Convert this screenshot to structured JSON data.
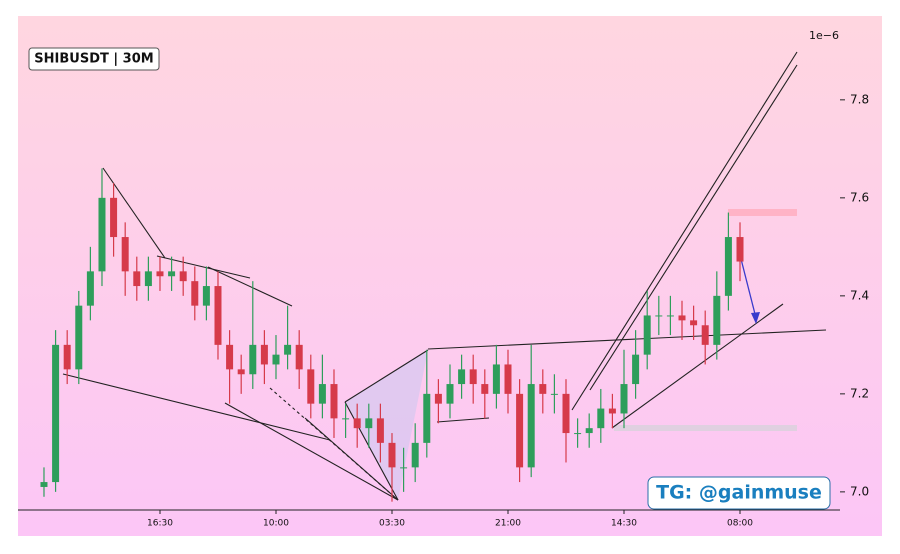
{
  "chart_data": {
    "type": "candlestick",
    "title": "SHIBUSDT | 30M",
    "annotation": "TG: @gainmuse",
    "y_offset_label": "1e−6",
    "xlim": [
      -2.24,
      68.62
    ],
    "xticks": [
      {
        "value": 10,
        "label": "16:30"
      },
      {
        "value": 20,
        "label": "10:00"
      },
      {
        "value": 30,
        "label": "03:30"
      },
      {
        "value": 40,
        "label": "21:00"
      },
      {
        "value": 50,
        "label": "14:30"
      },
      {
        "value": 60,
        "label": "08:00"
      }
    ],
    "ylim": [
      6.963,
      7.967
    ],
    "yticks": [
      {
        "value": 7,
        "label": "7.0"
      },
      {
        "value": 7.2,
        "label": "7.2"
      },
      {
        "value": 7.4,
        "label": "7.4"
      },
      {
        "value": 7.6,
        "label": "7.6"
      },
      {
        "value": 7.8,
        "label": "7.8"
      }
    ],
    "up_color": "#2e9e5b",
    "down_color": "#d63a4a",
    "open": [
      7.01,
      7.02,
      7.3,
      7.25,
      7.38,
      7.45,
      7.6,
      7.52,
      7.45,
      7.42,
      7.45,
      7.44,
      7.45,
      7.43,
      7.38,
      7.42,
      7.3,
      7.25,
      7.24,
      7.3,
      7.26,
      7.28,
      7.3,
      7.25,
      7.18,
      7.22,
      7.15,
      7.15,
      7.13,
      7.15,
      7.1,
      7.05,
      7.05,
      7.1,
      7.2,
      7.18,
      7.22,
      7.25,
      7.22,
      7.2,
      7.26,
      7.2,
      7.05,
      7.22,
      7.2,
      7.2,
      7.12,
      7.12,
      7.13,
      7.17,
      7.16,
      7.22,
      7.28,
      7.36,
      7.36,
      7.36,
      7.35,
      7.34,
      7.3,
      7.4,
      7.52
    ],
    "high": [
      7.05,
      7.33,
      7.33,
      7.41,
      7.5,
      7.66,
      7.63,
      7.55,
      7.48,
      7.48,
      7.48,
      7.48,
      7.48,
      7.46,
      7.46,
      7.45,
      7.33,
      7.28,
      7.43,
      7.33,
      7.32,
      7.38,
      7.33,
      7.28,
      7.28,
      7.25,
      7.18,
      7.18,
      7.18,
      7.18,
      7.12,
      7.09,
      7.14,
      7.29,
      7.23,
      7.26,
      7.28,
      7.28,
      7.25,
      7.3,
      7.29,
      7.23,
      7.3,
      7.25,
      7.24,
      7.23,
      7.15,
      7.16,
      7.21,
      7.2,
      7.29,
      7.33,
      7.41,
      7.4,
      7.4,
      7.39,
      7.38,
      7.37,
      7.45,
      7.57,
      7.55
    ],
    "low": [
      6.99,
      7.0,
      7.22,
      7.22,
      7.35,
      7.42,
      7.48,
      7.4,
      7.39,
      7.39,
      7.41,
      7.41,
      7.4,
      7.35,
      7.35,
      7.27,
      7.18,
      7.2,
      7.21,
      7.22,
      7.23,
      7.25,
      7.21,
      7.15,
      7.15,
      7.11,
      7.11,
      7.09,
      7.09,
      7.06,
      6.98,
      7.0,
      7.02,
      7.07,
      7.14,
      7.15,
      7.19,
      7.18,
      7.15,
      7.17,
      7.16,
      7.02,
      7.03,
      7.16,
      7.16,
      7.06,
      7.09,
      7.09,
      7.1,
      7.13,
      7.13,
      7.19,
      7.25,
      7.32,
      7.32,
      7.31,
      7.31,
      7.26,
      7.27,
      7.37,
      7.43
    ],
    "close": [
      7.02,
      7.3,
      7.25,
      7.38,
      7.45,
      7.6,
      7.52,
      7.45,
      7.42,
      7.45,
      7.44,
      7.45,
      7.43,
      7.38,
      7.42,
      7.3,
      7.25,
      7.24,
      7.3,
      7.26,
      7.28,
      7.3,
      7.25,
      7.18,
      7.22,
      7.15,
      7.15,
      7.13,
      7.15,
      7.1,
      7.05,
      7.05,
      7.1,
      7.2,
      7.18,
      7.22,
      7.25,
      7.22,
      7.2,
      7.26,
      7.2,
      7.05,
      7.22,
      7.2,
      7.2,
      7.12,
      7.12,
      7.13,
      7.17,
      7.16,
      7.22,
      7.28,
      7.36,
      7.36,
      7.36,
      7.35,
      7.34,
      7.3,
      7.4,
      7.52,
      7.47
    ]
  }
}
